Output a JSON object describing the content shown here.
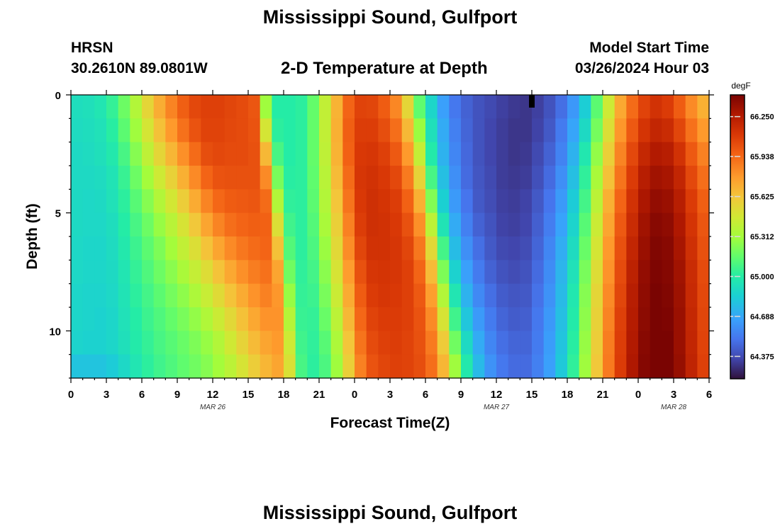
{
  "header": {
    "title": "Mississippi Sound, Gulfport",
    "station_id": "HRSN",
    "coordinates": "30.2610N  89.0801W",
    "plot_title": "2-D Temperature at Depth",
    "model_start_label": "Model Start Time",
    "model_start_value": "03/26/2024 Hour 03"
  },
  "footer": {
    "title": "Mississippi Sound, Gulfport"
  },
  "chart_data": {
    "type": "heatmap",
    "title": "2-D Temperature at Depth",
    "xlabel": "Forecast Time(Z)",
    "ylabel": "Depth (ft)",
    "x_unit": "hours since 03/26 00Z",
    "x_range": [
      0,
      54
    ],
    "y_range": [
      0,
      12
    ],
    "y_reversed": true,
    "x_ticks": [
      {
        "value": 0,
        "label": "0"
      },
      {
        "value": 3,
        "label": "3"
      },
      {
        "value": 6,
        "label": "6"
      },
      {
        "value": 9,
        "label": "9"
      },
      {
        "value": 12,
        "label": "12"
      },
      {
        "value": 15,
        "label": "15"
      },
      {
        "value": 18,
        "label": "18"
      },
      {
        "value": 21,
        "label": "21"
      },
      {
        "value": 24,
        "label": "0"
      },
      {
        "value": 27,
        "label": "3"
      },
      {
        "value": 30,
        "label": "6"
      },
      {
        "value": 33,
        "label": "9"
      },
      {
        "value": 36,
        "label": "12"
      },
      {
        "value": 39,
        "label": "15"
      },
      {
        "value": 42,
        "label": "18"
      },
      {
        "value": 45,
        "label": "21"
      },
      {
        "value": 48,
        "label": "0"
      },
      {
        "value": 51,
        "label": "3"
      },
      {
        "value": 54,
        "label": "6"
      }
    ],
    "date_labels": [
      {
        "value": 12,
        "label": "MAR 26"
      },
      {
        "value": 36,
        "label": "MAR 27"
      },
      {
        "value": 51,
        "label": "MAR 28"
      }
    ],
    "y_ticks": [
      {
        "value": 0,
        "label": "0"
      },
      {
        "value": 5,
        "label": "5"
      },
      {
        "value": 10,
        "label": "10"
      }
    ],
    "depths": [
      0,
      1,
      2,
      3,
      4,
      5,
      6,
      7,
      8,
      9,
      10,
      11
    ],
    "time_step_hours": 1,
    "values_degF": [
      [
        64.92,
        64.93,
        64.96,
        65.04,
        65.18,
        65.36,
        65.55,
        65.71,
        65.85,
        65.97,
        66.05,
        66.08,
        66.08,
        66.06,
        66.04,
        66.0,
        65.3,
        65.0,
        65.0,
        65.02,
        65.16,
        65.41,
        65.69,
        65.95,
        66.07,
        66.06,
        65.98,
        65.84,
        65.55,
        65.15,
        64.88,
        64.66,
        64.52,
        64.45,
        64.4,
        64.37,
        64.34,
        64.32,
        64.31,
        64.34,
        64.4,
        64.49,
        64.63,
        64.84,
        65.14,
        65.45,
        65.73,
        65.93,
        66.07,
        66.14,
        66.1,
        65.98,
        65.83,
        65.7
      ],
      [
        64.91,
        64.92,
        64.94,
        65.01,
        65.14,
        65.3,
        65.48,
        65.64,
        65.78,
        65.91,
        66.01,
        66.07,
        66.07,
        66.05,
        66.04,
        66.01,
        65.48,
        65.02,
        65.0,
        65.02,
        65.16,
        65.41,
        65.7,
        65.97,
        66.09,
        66.09,
        66.03,
        65.92,
        65.67,
        65.29,
        64.93,
        64.7,
        64.55,
        64.46,
        64.4,
        64.36,
        64.33,
        64.31,
        64.31,
        64.35,
        64.42,
        64.53,
        64.68,
        64.9,
        65.2,
        65.51,
        65.79,
        65.99,
        66.13,
        66.2,
        66.17,
        66.06,
        65.91,
        65.78
      ],
      [
        64.9,
        64.91,
        64.93,
        64.98,
        65.09,
        65.24,
        65.4,
        65.55,
        65.68,
        65.81,
        65.93,
        66.03,
        66.05,
        66.04,
        66.04,
        66.02,
        65.67,
        65.09,
        65.0,
        65.02,
        65.16,
        65.4,
        65.69,
        65.96,
        66.11,
        66.12,
        66.08,
        65.99,
        65.78,
        65.42,
        64.99,
        64.73,
        64.57,
        64.47,
        64.4,
        64.36,
        64.33,
        64.31,
        64.32,
        64.37,
        64.45,
        64.56,
        64.73,
        64.97,
        65.27,
        65.58,
        65.85,
        66.05,
        66.19,
        66.26,
        66.24,
        66.14,
        65.99,
        65.86
      ],
      [
        64.9,
        64.9,
        64.91,
        64.95,
        65.05,
        65.18,
        65.31,
        65.45,
        65.57,
        65.7,
        65.83,
        65.95,
        66.01,
        66.02,
        66.02,
        66.02,
        65.83,
        65.21,
        65.01,
        65.02,
        65.15,
        65.38,
        65.66,
        65.93,
        66.12,
        66.14,
        66.11,
        66.05,
        65.88,
        65.56,
        65.09,
        64.78,
        64.6,
        64.48,
        64.41,
        64.37,
        64.33,
        64.32,
        64.33,
        64.39,
        64.48,
        64.6,
        64.78,
        65.03,
        65.33,
        65.64,
        65.9,
        66.1,
        66.24,
        66.31,
        66.29,
        66.2,
        66.05,
        65.92
      ],
      [
        64.9,
        64.89,
        64.9,
        64.94,
        65.02,
        65.13,
        65.24,
        65.36,
        65.47,
        65.59,
        65.72,
        65.85,
        65.94,
        65.98,
        65.99,
        66.0,
        65.93,
        65.36,
        65.03,
        65.02,
        65.14,
        65.36,
        65.62,
        65.9,
        66.11,
        66.15,
        66.13,
        66.09,
        65.96,
        65.7,
        65.23,
        64.85,
        64.64,
        64.51,
        64.42,
        64.38,
        64.34,
        64.33,
        64.35,
        64.42,
        64.51,
        64.64,
        64.83,
        65.08,
        65.39,
        65.7,
        65.95,
        66.14,
        66.28,
        66.35,
        66.33,
        66.24,
        66.1,
        65.97
      ],
      [
        64.9,
        64.89,
        64.89,
        64.92,
        65.0,
        65.09,
        65.18,
        65.28,
        65.38,
        65.49,
        65.61,
        65.74,
        65.85,
        65.92,
        65.95,
        65.97,
        65.96,
        65.51,
        65.07,
        65.02,
        65.12,
        65.33,
        65.58,
        65.86,
        66.09,
        66.15,
        66.14,
        66.11,
        66.02,
        65.81,
        65.39,
        64.95,
        64.7,
        64.55,
        64.45,
        64.4,
        64.35,
        64.34,
        64.36,
        64.44,
        64.54,
        64.67,
        64.87,
        65.13,
        65.44,
        65.74,
        65.99,
        66.17,
        66.31,
        66.38,
        66.36,
        66.27,
        66.13,
        66.0
      ],
      [
        64.89,
        64.88,
        64.88,
        64.91,
        64.98,
        65.06,
        65.14,
        65.22,
        65.31,
        65.41,
        65.51,
        65.63,
        65.74,
        65.83,
        65.89,
        65.93,
        65.95,
        65.64,
        65.12,
        65.02,
        65.1,
        65.29,
        65.54,
        65.82,
        66.06,
        66.14,
        66.14,
        66.12,
        66.06,
        65.89,
        65.54,
        65.08,
        64.77,
        64.6,
        64.49,
        64.42,
        64.37,
        64.36,
        64.38,
        64.46,
        64.57,
        64.71,
        64.91,
        65.17,
        65.48,
        65.78,
        66.02,
        66.2,
        66.33,
        66.4,
        66.38,
        66.29,
        66.15,
        66.02
      ],
      [
        64.89,
        64.88,
        64.88,
        64.9,
        64.96,
        65.04,
        65.11,
        65.18,
        65.25,
        65.33,
        65.42,
        65.52,
        65.63,
        65.73,
        65.81,
        65.87,
        65.91,
        65.74,
        65.19,
        65.03,
        65.08,
        65.25,
        65.49,
        65.77,
        66.02,
        66.12,
        66.13,
        66.12,
        66.08,
        65.95,
        65.66,
        65.22,
        64.86,
        64.66,
        64.53,
        64.45,
        64.4,
        64.38,
        64.4,
        64.48,
        64.59,
        64.74,
        64.94,
        65.21,
        65.52,
        65.8,
        66.04,
        66.22,
        66.35,
        66.41,
        66.39,
        66.31,
        66.17,
        66.04
      ],
      [
        64.88,
        64.87,
        64.87,
        64.89,
        64.95,
        65.02,
        65.08,
        65.14,
        65.2,
        65.26,
        65.34,
        65.43,
        65.53,
        65.63,
        65.72,
        65.8,
        65.86,
        65.79,
        65.28,
        65.04,
        65.06,
        65.21,
        65.44,
        65.72,
        65.98,
        66.1,
        66.12,
        66.11,
        66.08,
        65.99,
        65.76,
        65.36,
        64.96,
        64.73,
        64.58,
        64.49,
        64.43,
        64.41,
        64.42,
        64.5,
        64.61,
        64.76,
        64.97,
        65.24,
        65.55,
        65.83,
        66.06,
        66.24,
        66.36,
        66.42,
        66.4,
        66.32,
        66.18,
        66.05
      ],
      [
        64.88,
        64.87,
        64.86,
        64.88,
        64.94,
        65.0,
        65.06,
        65.11,
        65.16,
        65.21,
        65.27,
        65.35,
        65.44,
        65.54,
        65.64,
        65.73,
        65.8,
        65.8,
        65.37,
        65.05,
        65.04,
        65.17,
        65.39,
        65.67,
        65.94,
        66.07,
        66.1,
        66.1,
        66.08,
        66.01,
        65.83,
        65.49,
        65.07,
        64.81,
        64.64,
        64.53,
        64.46,
        64.43,
        64.44,
        64.52,
        64.63,
        64.78,
        64.99,
        65.26,
        65.57,
        65.85,
        66.08,
        66.25,
        66.37,
        66.43,
        66.41,
        66.33,
        66.19,
        66.06
      ],
      [
        64.87,
        64.86,
        64.86,
        64.88,
        64.93,
        64.99,
        65.04,
        65.09,
        65.13,
        65.17,
        65.22,
        65.28,
        65.36,
        65.46,
        65.56,
        65.66,
        65.74,
        65.78,
        65.45,
        65.07,
        65.03,
        65.13,
        65.34,
        65.62,
        65.9,
        66.04,
        66.08,
        66.09,
        66.07,
        66.02,
        65.88,
        65.6,
        65.19,
        64.9,
        64.7,
        64.57,
        64.49,
        64.46,
        64.46,
        64.53,
        64.65,
        64.8,
        65.01,
        65.28,
        65.59,
        65.87,
        66.09,
        66.26,
        66.38,
        66.44,
        66.42,
        66.33,
        66.2,
        66.07
      ],
      [
        64.8,
        64.8,
        64.8,
        64.83,
        64.89,
        64.96,
        65.02,
        65.07,
        65.11,
        65.15,
        65.19,
        65.24,
        65.31,
        65.39,
        65.49,
        65.59,
        65.68,
        65.74,
        65.5,
        65.09,
        65.02,
        65.1,
        65.3,
        65.58,
        65.86,
        66.01,
        66.06,
        66.08,
        66.07,
        66.03,
        65.92,
        65.68,
        65.3,
        64.98,
        64.76,
        64.61,
        64.52,
        64.48,
        64.48,
        64.55,
        64.66,
        64.82,
        65.03,
        65.3,
        65.61,
        65.88,
        66.1,
        66.27,
        66.39,
        66.45,
        66.43,
        66.34,
        66.21,
        66.08
      ]
    ],
    "colorbar": {
      "label": "degF",
      "min": 64.2,
      "max": 66.42,
      "ticks": [
        66.25,
        65.938,
        65.625,
        65.312,
        65.0,
        64.688,
        64.375
      ],
      "tick_labels": [
        "66.250",
        "65.938",
        "65.625",
        "65.312",
        "65.000",
        "64.688",
        "64.375"
      ],
      "colormap": "turbo"
    },
    "current_time_marker_hour": 39,
    "grid": false
  }
}
